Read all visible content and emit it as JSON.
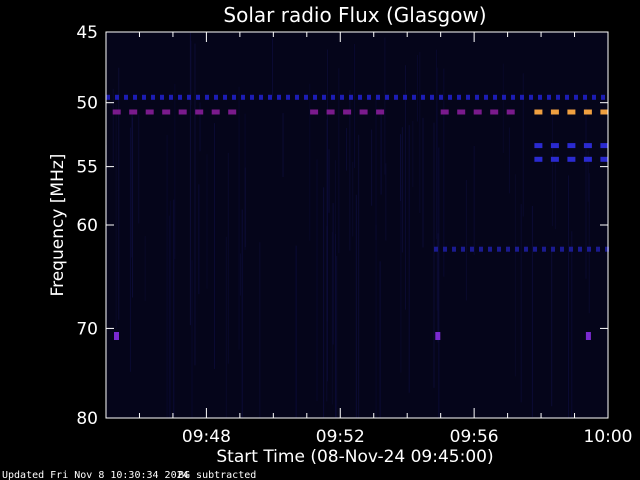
{
  "chart_data": {
    "type": "heatmap",
    "title": "Solar radio Flux (Glasgow)",
    "xlabel": "Start Time (08-Nov-24 09:45:00)",
    "ylabel": "Frequency [MHz]",
    "x_range_minutes": [
      0,
      15
    ],
    "x_ticks": [
      {
        "label": "09:48",
        "minutes": 3
      },
      {
        "label": "09:52",
        "minutes": 7
      },
      {
        "label": "09:56",
        "minutes": 11
      },
      {
        "label": "10:00",
        "minutes": 15
      }
    ],
    "y_scale": "log",
    "ylim": [
      45,
      80
    ],
    "y_ticks": [
      45,
      50,
      55,
      60,
      70,
      80
    ],
    "features": [
      {
        "kind": "dashed-band",
        "freq_mhz": 49.6,
        "from_min": 0.0,
        "to_min": 15.0,
        "color": "#1c1cb4"
      },
      {
        "kind": "dashed-band",
        "freq_mhz": 50.7,
        "from_min": 0.2,
        "to_min": 4.2,
        "color": "#7a1a8c"
      },
      {
        "kind": "dashed-band",
        "freq_mhz": 50.7,
        "from_min": 6.1,
        "to_min": 8.5,
        "color": "#7a1a8c"
      },
      {
        "kind": "dashed-band",
        "freq_mhz": 50.7,
        "from_min": 10.0,
        "to_min": 12.2,
        "color": "#7a1a8c"
      },
      {
        "kind": "dashed-band",
        "freq_mhz": 50.7,
        "from_min": 12.8,
        "to_min": 15.0,
        "color": "#f0a040"
      },
      {
        "kind": "dashed-band",
        "freq_mhz": 53.3,
        "from_min": 12.8,
        "to_min": 15.0,
        "color": "#2a2ad0"
      },
      {
        "kind": "dashed-band",
        "freq_mhz": 54.4,
        "from_min": 12.8,
        "to_min": 15.0,
        "color": "#2a2ad0"
      },
      {
        "kind": "dashed-band",
        "freq_mhz": 62.2,
        "from_min": 9.8,
        "to_min": 15.0,
        "color": "#1a1a90"
      },
      {
        "kind": "spot",
        "freq_mhz": 70.8,
        "at_min": 0.3,
        "color": "#7a2ad0"
      },
      {
        "kind": "spot",
        "freq_mhz": 70.8,
        "at_min": 9.9,
        "color": "#7a2ad0"
      },
      {
        "kind": "spot",
        "freq_mhz": 70.8,
        "at_min": 14.4,
        "color": "#7a2ad0"
      }
    ],
    "background_color": "#05051a"
  },
  "footer": {
    "updated": "Updated Fri Nov  8 10:30:34 2024",
    "note": "BG subtracted"
  }
}
